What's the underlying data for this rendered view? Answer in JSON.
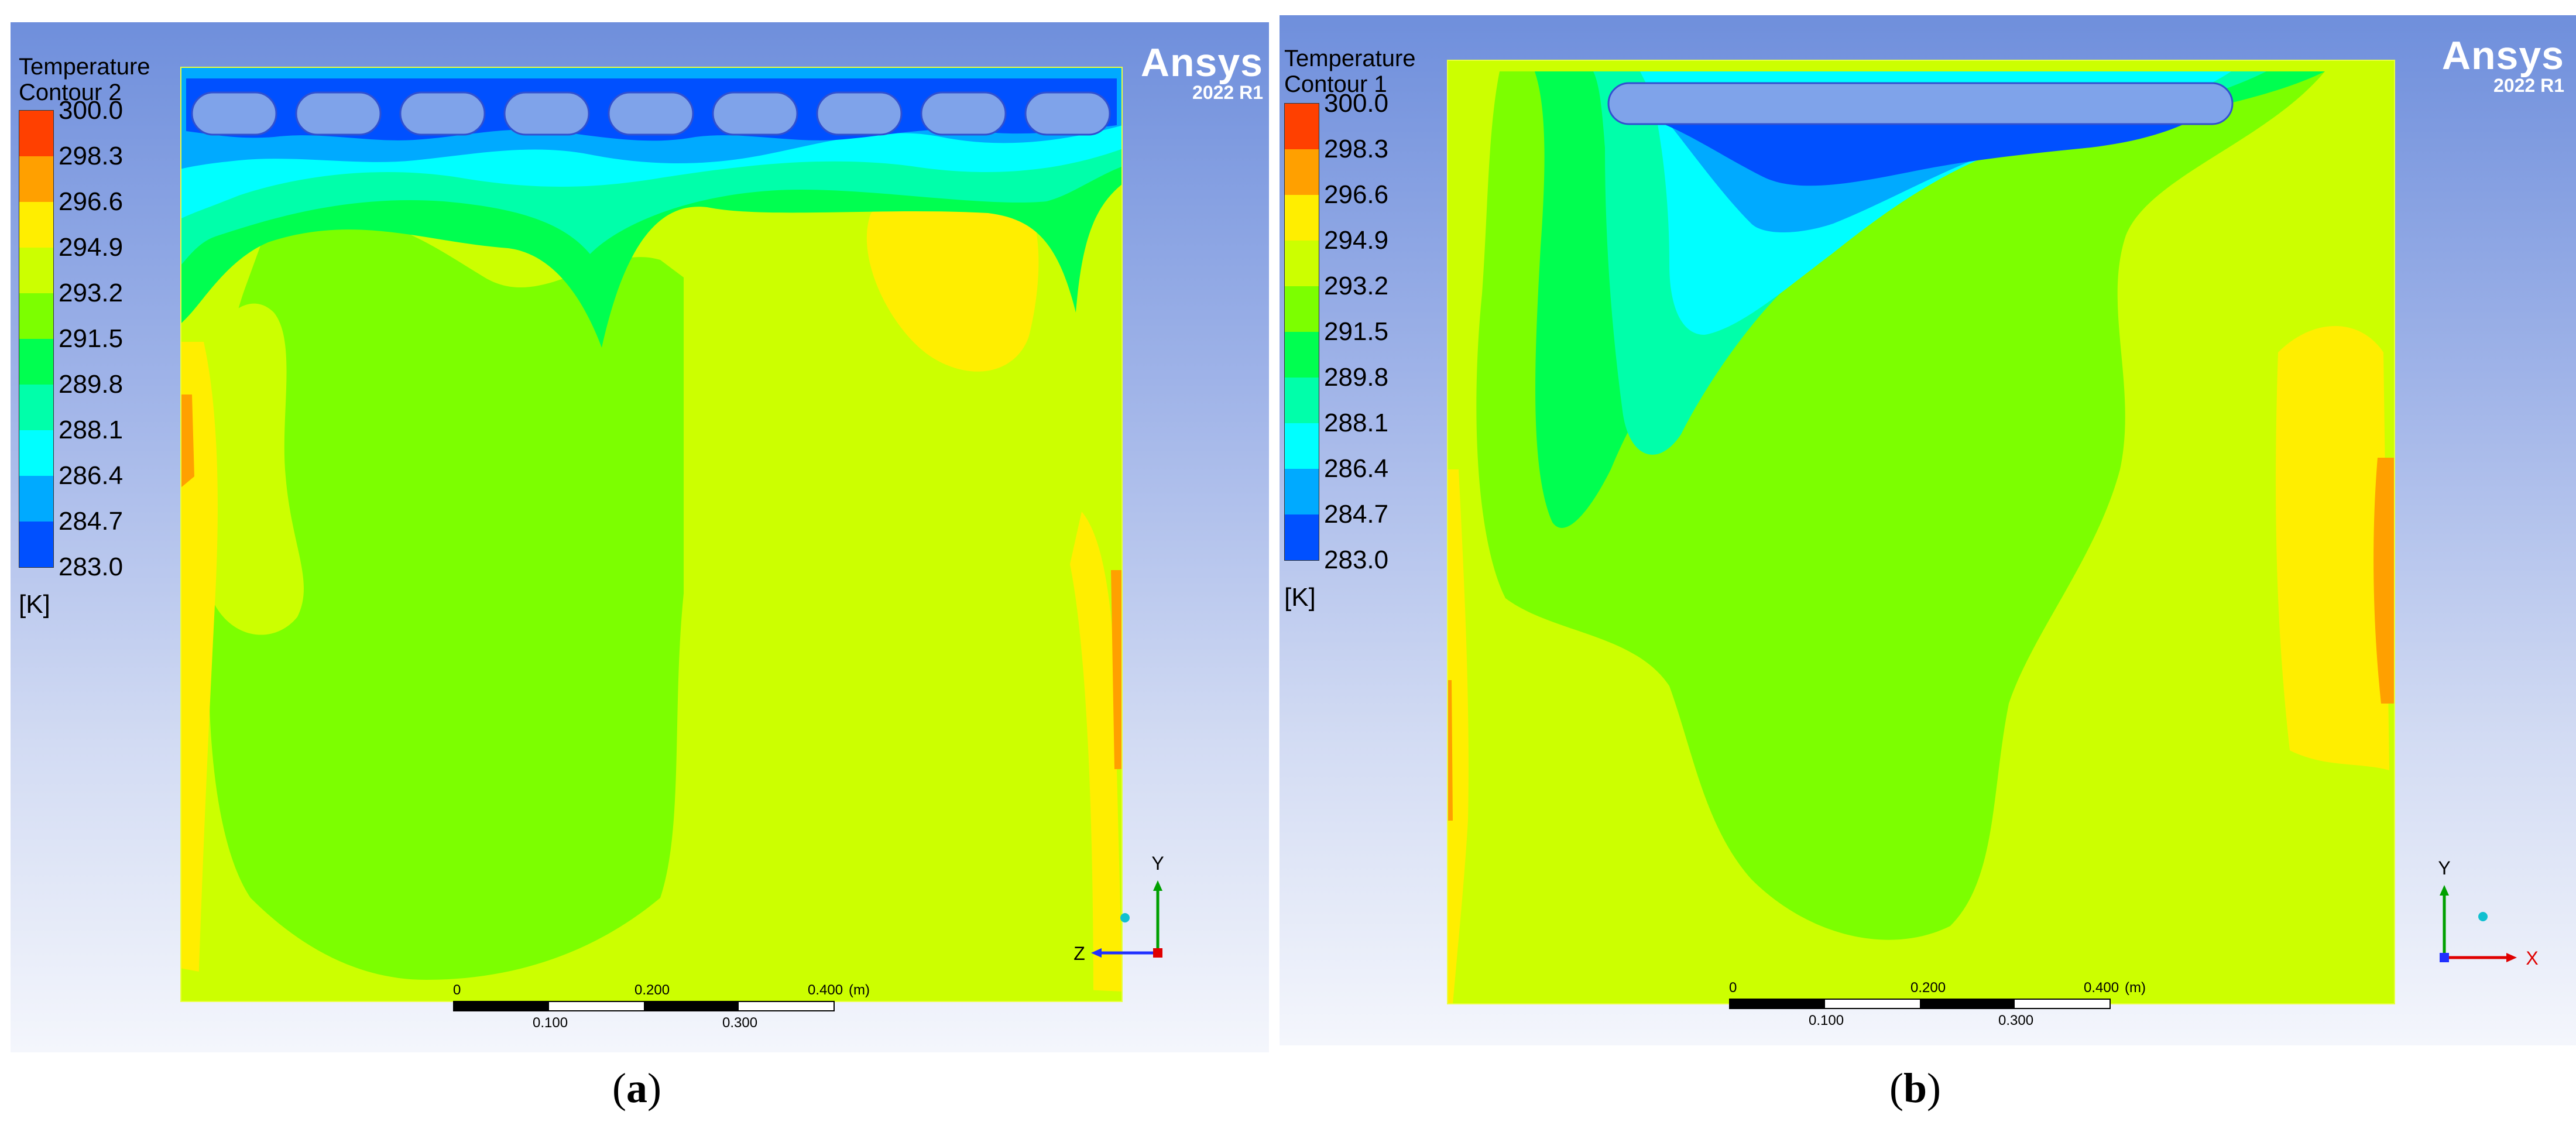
{
  "legend_colors": [
    "#ff4000",
    "#ffa000",
    "#ffee00",
    "#ccff00",
    "#7cff00",
    "#00ff50",
    "#00ffaa",
    "#00ffff",
    "#00aaff",
    "#0050ff",
    "#0000ff"
  ],
  "panels": [
    {
      "id": "a",
      "legend_title": [
        "Temperature",
        "Contour 2"
      ],
      "legend_values": [
        "300.0",
        "298.3",
        "296.6",
        "294.9",
        "293.2",
        "291.5",
        "289.8",
        "288.1",
        "286.4",
        "284.7",
        "283.0"
      ],
      "unit": "[K]",
      "brand_name": "Ansys",
      "brand_version": "2022 R1",
      "scale_top": [
        "0",
        "0.200",
        "0.400",
        "(m)"
      ],
      "scale_bottom": [
        "0.100",
        "0.300"
      ],
      "axis_vertical": "Y",
      "axis_horizontal": "Z",
      "caption_letter": "a"
    },
    {
      "id": "b",
      "legend_title": [
        "Temperature",
        "Contour 1"
      ],
      "legend_values": [
        "300.0",
        "298.3",
        "296.6",
        "294.9",
        "293.2",
        "291.5",
        "289.8",
        "288.1",
        "286.4",
        "284.7",
        "283.0"
      ],
      "unit": "[K]",
      "brand_name": "Ansys",
      "brand_version": "2022 R1",
      "scale_top": [
        "0",
        "0.200",
        "0.400",
        "(m)"
      ],
      "scale_bottom": [
        "0.100",
        "0.300"
      ],
      "axis_vertical": "Y",
      "axis_horizontal": "X",
      "caption_letter": "b"
    }
  ]
}
